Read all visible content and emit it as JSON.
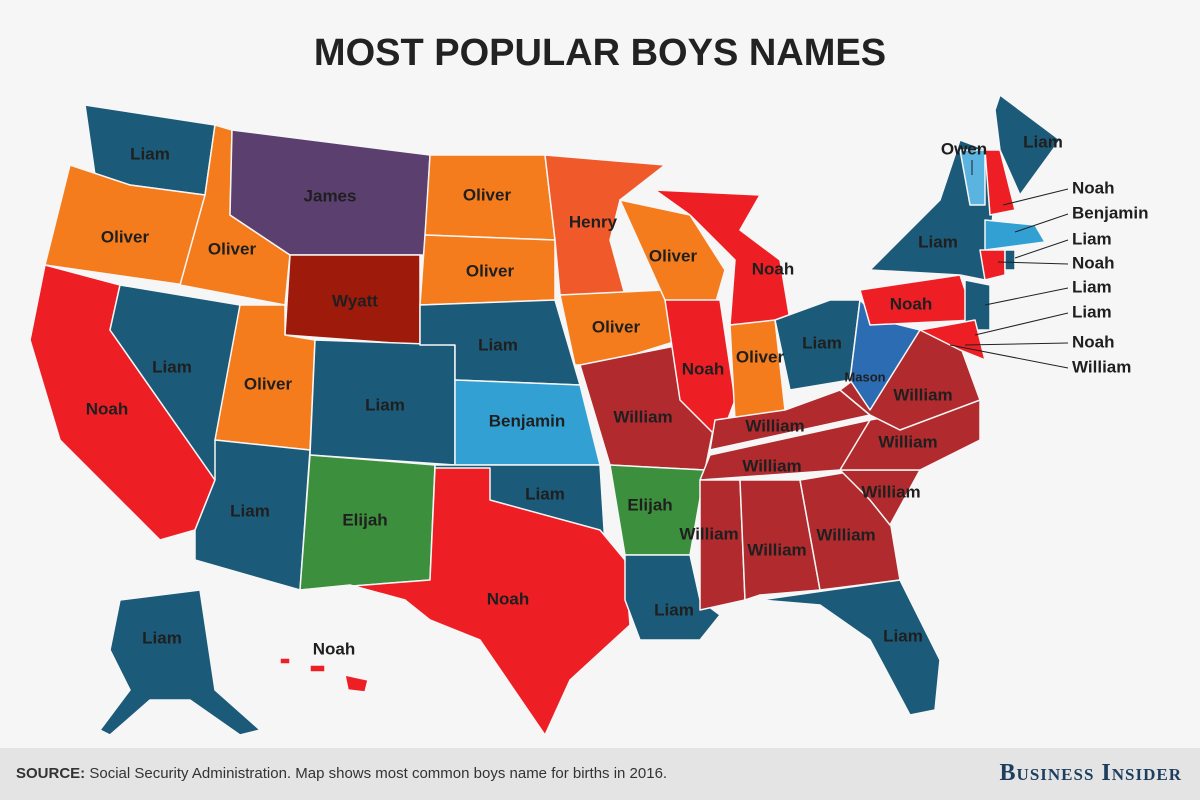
{
  "header": {
    "title": "MOST POPULAR BOYS NAMES"
  },
  "map": {
    "labels": [
      "Liam",
      "Oliver",
      "Noah",
      "Liam",
      "Oliver",
      "James",
      "Wyatt",
      "Oliver",
      "Liam",
      "Liam",
      "Elijah",
      "Oliver",
      "Oliver",
      "Liam",
      "Benjamin",
      "Liam",
      "Noah",
      "Henry",
      "Oliver",
      "Oliver",
      "William",
      "Elijah",
      "Liam",
      "Noah",
      "Noah",
      "Oliver",
      "Liam",
      "Mason",
      "William",
      "William",
      "William",
      "William",
      "William",
      "William",
      "William",
      "William",
      "Liam",
      "Noah",
      "Liam",
      "Liam",
      "Noah",
      "Owen",
      "Liam",
      "Noah",
      "Benjamin",
      "Liam",
      "Noah",
      "Liam",
      "Liam",
      "Noah",
      "William"
    ]
  },
  "footer": {
    "source_label": "SOURCE:",
    "source_text": "Social Security Administration. Map shows most common boys name for births in 2016.",
    "brand": "Business Insider"
  }
}
